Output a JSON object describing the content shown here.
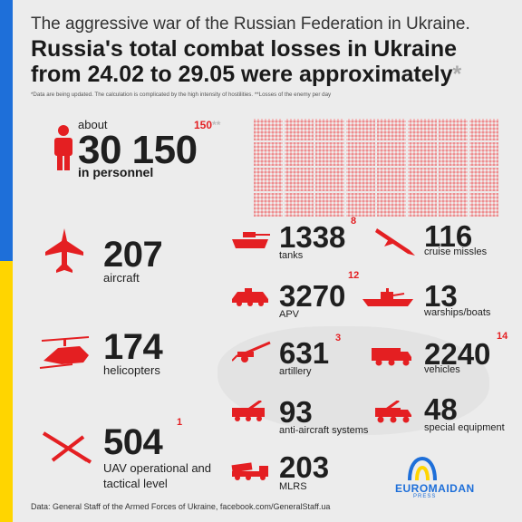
{
  "header": {
    "subtitle": "The aggressive war of the Russian Federation in Ukraine.",
    "title_line1": "Russia's total combat losses in Ukraine",
    "title_line2": "from 24.02 to 29.05 were approximately",
    "title_star": "*",
    "note": "*Data are being updated. The calculation is complicated by the high intensity of hostilities. **Losses of the enemy per day"
  },
  "personnel": {
    "prefix": "about",
    "value": "30 150",
    "daily": "150",
    "daily_mark": "**",
    "label": "in personnel"
  },
  "items": {
    "aircraft": {
      "value": "207",
      "label": "aircraft",
      "daily": ""
    },
    "helicopters": {
      "value": "174",
      "label": "helicopters",
      "daily": ""
    },
    "uav": {
      "value": "504",
      "label_line1": "UAV operational and",
      "label_line2": "tactical level",
      "daily": "1"
    },
    "tanks": {
      "value": "1338",
      "label": "tanks",
      "daily": "8"
    },
    "apv": {
      "value": "3270",
      "label": "APV",
      "daily": "12"
    },
    "artillery": {
      "value": "631",
      "label": "artillery",
      "daily": "3"
    },
    "antiair": {
      "value": "93",
      "label": "anti-aircraft systems",
      "daily": ""
    },
    "mlrs": {
      "value": "203",
      "label": "MLRS",
      "daily": ""
    },
    "missiles": {
      "value": "116",
      "label": "cruise missles",
      "daily": ""
    },
    "warships": {
      "value": "13",
      "label": "warships/boats",
      "daily": ""
    },
    "vehicles": {
      "value": "2240",
      "label": "vehicles",
      "daily": "14"
    },
    "special": {
      "value": "48",
      "label": "special equipment",
      "daily": ""
    }
  },
  "footer": {
    "source": "Data: General Staff of the Armed Forces of Ukraine, facebook.com/GeneralStaff.ua",
    "logo_name": "EUROMAIDAN",
    "logo_sub": "PRESS"
  },
  "colors": {
    "accent": "#e41f22",
    "flag_blue": "#1e6fd9",
    "flag_yellow": "#ffd500",
    "background": "#ececec"
  },
  "icons": [
    "person-icon",
    "aircraft-icon",
    "helicopter-icon",
    "uav-icon",
    "tank-icon",
    "apv-icon",
    "artillery-icon",
    "antiair-icon",
    "mlrs-icon",
    "missile-icon",
    "warship-icon",
    "vehicle-icon",
    "special-equipment-icon",
    "euromaidan-logo-icon"
  ]
}
